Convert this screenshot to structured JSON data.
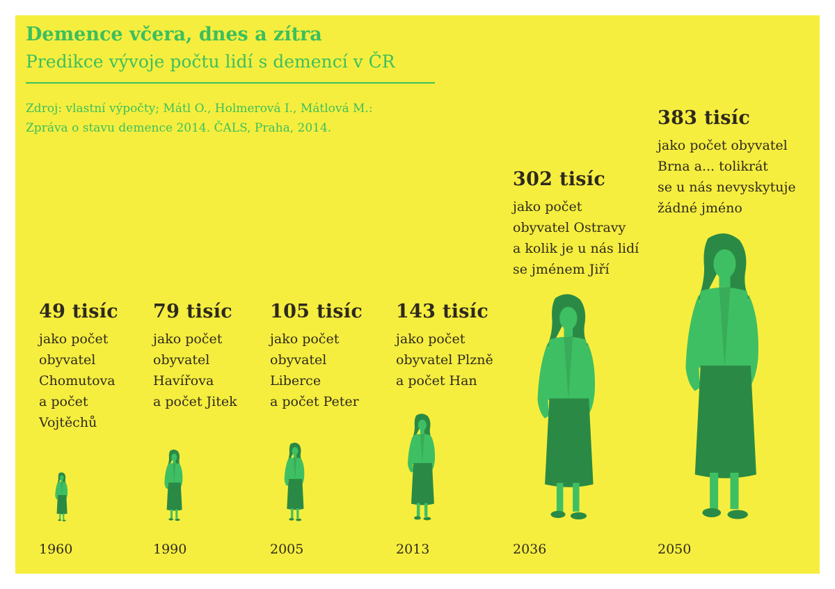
{
  "colors": {
    "background": "#f6ee3e",
    "accent": "#3cbf5e",
    "figure": "#3fbf63",
    "figure_dark": "#2a8a45",
    "text": "#2e2a1e"
  },
  "chart_data": {
    "type": "bar",
    "title": "Demence včera, dnes a zítra",
    "subtitle": "Predikce vývoje počtu lidí s demencí v ČR",
    "source_lines": [
      "Zdroj: vlastní výpočty; Mátl O., Holmerová I., Mátlová M.:",
      "Zpráva o stavu demence 2014. ČALS, Praha, 2014."
    ],
    "unit": "tisíc",
    "categories": [
      "1960",
      "1990",
      "2005",
      "2013",
      "2036",
      "2050"
    ],
    "values": [
      49,
      79,
      105,
      143,
      302,
      383
    ],
    "points": [
      {
        "year": "1960",
        "value": 49,
        "value_label": "49 tisíc",
        "lines": [
          "jako počet",
          "obyvatel",
          "Chomutova",
          "a počet",
          "Vojtěchů"
        ]
      },
      {
        "year": "1990",
        "value": 79,
        "value_label": "79 tisíc",
        "lines": [
          "jako počet",
          "obyvatel",
          "Havířova",
          "a počet Jitek"
        ]
      },
      {
        "year": "2005",
        "value": 105,
        "value_label": "105 tisíc",
        "lines": [
          "jako počet",
          "obyvatel",
          "Liberce",
          "a počet Peter"
        ]
      },
      {
        "year": "2013",
        "value": 143,
        "value_label": "143 tisíc",
        "lines": [
          "jako počet",
          "obyvatel Plzně",
          "a počet Han"
        ]
      },
      {
        "year": "2036",
        "value": 302,
        "value_label": "302 tisíc",
        "lines": [
          "jako počet",
          "obyvatel Ostravy",
          "a kolik je u nás lidí",
          "se jménem Jiří"
        ]
      },
      {
        "year": "2050",
        "value": 383,
        "value_label": "383 tisíc",
        "lines": [
          "jako počet obyvatel",
          "Brna a... tolikrát",
          "se u nás nevyskytuje",
          "žádné jméno"
        ]
      }
    ]
  }
}
